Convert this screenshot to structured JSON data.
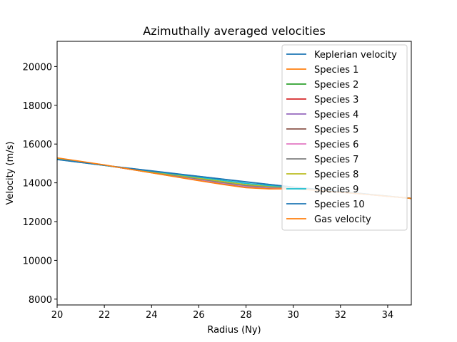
{
  "chart_data": {
    "type": "line",
    "title": "Azimuthally averaged velocities",
    "xlabel": "Radius (Ny)",
    "ylabel": "Velocity (m/s)",
    "xlim": [
      20,
      35
    ],
    "ylim": [
      7700,
      21300
    ],
    "xticks": [
      20,
      22,
      24,
      26,
      28,
      30,
      32,
      34
    ],
    "yticks": [
      8000,
      10000,
      12000,
      14000,
      16000,
      18000,
      20000
    ],
    "grid": false,
    "legend_position": "top-right",
    "series": [
      {
        "name": "Keplerian velocity",
        "color": "#1f77b4",
        "x": [
          20,
          22,
          24,
          26,
          28,
          30,
          32,
          35
        ],
        "y": [
          15200,
          14900,
          14620,
          14340,
          14060,
          13780,
          13550,
          13200
        ]
      },
      {
        "name": "Species 1",
        "color": "#ff7f0e",
        "x": [
          20,
          22,
          24,
          26,
          27,
          28,
          29,
          30,
          31,
          32,
          33,
          35
        ],
        "y": [
          15280,
          14920,
          14520,
          14120,
          13930,
          13760,
          13690,
          13700,
          13620,
          13520,
          13420,
          13200
        ]
      },
      {
        "name": "Species 2",
        "color": "#2ca02c",
        "x": [
          20,
          22,
          24,
          26,
          27,
          28,
          29,
          30,
          31,
          32,
          33,
          35
        ],
        "y": [
          15270,
          14915,
          14525,
          14130,
          13940,
          13770,
          13705,
          13710,
          13625,
          13520,
          13420,
          13200
        ]
      },
      {
        "name": "Species 3",
        "color": "#d62728",
        "x": [
          20,
          22,
          24,
          26,
          27,
          28,
          29,
          30,
          31,
          32,
          33,
          35
        ],
        "y": [
          15265,
          14912,
          14530,
          14140,
          13950,
          13780,
          13715,
          13715,
          13628,
          13522,
          13420,
          13200
        ]
      },
      {
        "name": "Species 4",
        "color": "#9467bd",
        "x": [
          20,
          22,
          24,
          26,
          27,
          28,
          29,
          30,
          31,
          32,
          33,
          35
        ],
        "y": [
          15260,
          14910,
          14535,
          14150,
          13960,
          13790,
          13725,
          13720,
          13630,
          13524,
          13420,
          13200
        ]
      },
      {
        "name": "Species 5",
        "color": "#8c564b",
        "x": [
          20,
          22,
          24,
          26,
          27,
          28,
          29,
          30,
          31,
          32,
          33,
          35
        ],
        "y": [
          15255,
          14908,
          14540,
          14160,
          13970,
          13800,
          13735,
          13725,
          13632,
          13526,
          13420,
          13200
        ]
      },
      {
        "name": "Species 6",
        "color": "#e377c2",
        "x": [
          20,
          22,
          24,
          26,
          27,
          28,
          29,
          30,
          31,
          32,
          33,
          35
        ],
        "y": [
          15250,
          14905,
          14545,
          14170,
          13985,
          13815,
          13745,
          13730,
          13635,
          13528,
          13420,
          13200
        ]
      },
      {
        "name": "Species 7",
        "color": "#7f7f7f",
        "x": [
          20,
          22,
          24,
          26,
          27,
          28,
          29,
          30,
          31,
          32,
          33,
          35
        ],
        "y": [
          15240,
          14902,
          14560,
          14200,
          14020,
          13860,
          13780,
          13745,
          13645,
          13535,
          13425,
          13200
        ]
      },
      {
        "name": "Species 8",
        "color": "#bcbd22",
        "x": [
          20,
          22,
          24,
          26,
          27,
          28,
          29,
          30,
          31,
          32,
          33,
          35
        ],
        "y": [
          15230,
          14900,
          14580,
          14240,
          14070,
          13910,
          13820,
          13760,
          13655,
          13540,
          13428,
          13200
        ]
      },
      {
        "name": "Species 9",
        "color": "#17becf",
        "x": [
          20,
          22,
          24,
          26,
          27,
          28,
          29,
          30,
          31,
          32,
          33,
          35
        ],
        "y": [
          15215,
          14898,
          14600,
          14290,
          14130,
          13970,
          13860,
          13775,
          13665,
          13548,
          13430,
          13200
        ]
      },
      {
        "name": "Species 10",
        "color": "#1f77b4",
        "x": [
          20,
          22,
          24,
          26,
          28,
          30,
          32,
          35
        ],
        "y": [
          15205,
          14900,
          14615,
          14330,
          14045,
          13785,
          13555,
          13200
        ]
      },
      {
        "name": "Gas velocity",
        "color": "#ff7f0e",
        "x": [
          20,
          22,
          24,
          26,
          27,
          28,
          29,
          30,
          31,
          32,
          33,
          35
        ],
        "y": [
          15290,
          14925,
          14515,
          14110,
          13920,
          13750,
          13685,
          13695,
          13615,
          13515,
          13415,
          13200
        ]
      }
    ]
  }
}
